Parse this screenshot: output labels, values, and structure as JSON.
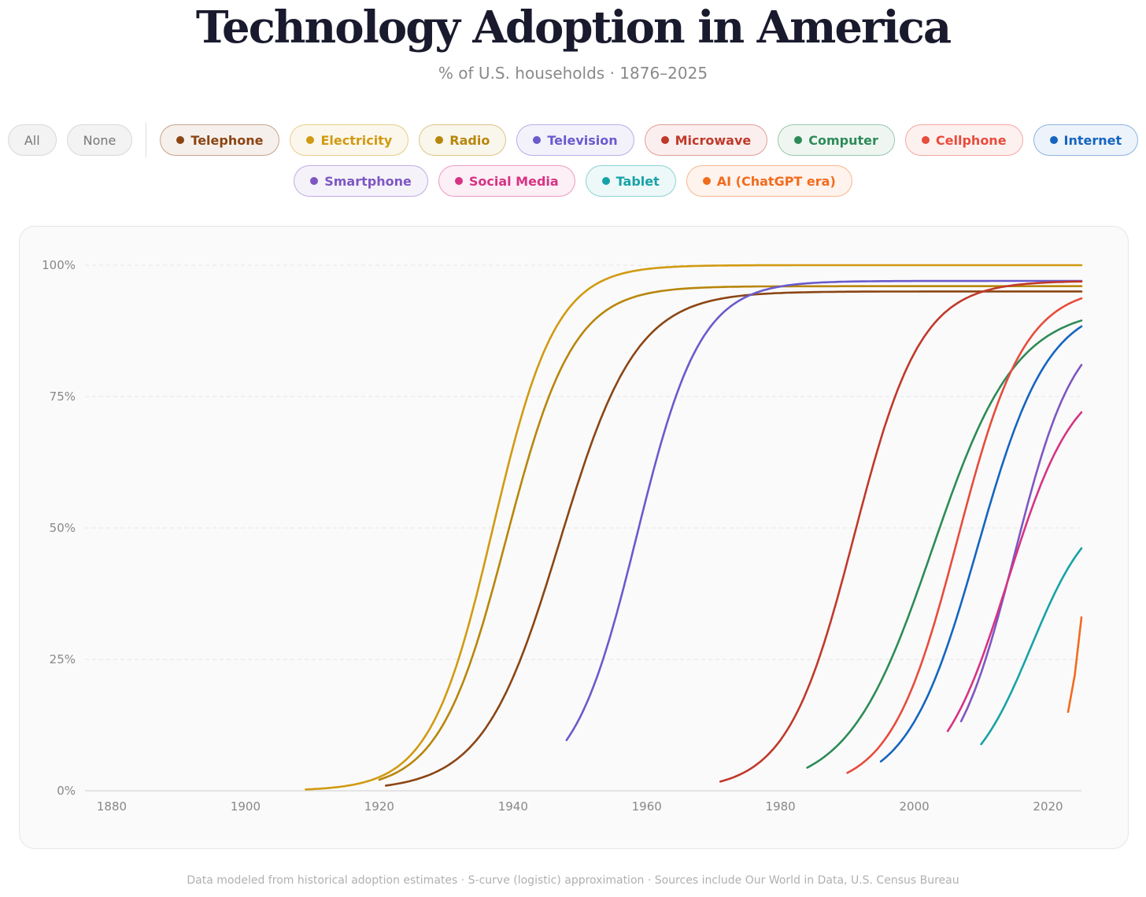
{
  "title": "Technology Adoption in America",
  "subtitle": "% of U.S. households · 1876–2025",
  "controls": {
    "all_label": "All",
    "none_label": "None"
  },
  "footer": "Data modeled from historical adoption estimates · S-curve (logistic) approximation · Sources include Our World in Data, U.S. Census Bureau",
  "chart_data": {
    "type": "line",
    "title": "Technology Adoption in America",
    "xlabel": "",
    "ylabel": "% of U.S. households",
    "xlim": [
      1876,
      2025
    ],
    "ylim": [
      0,
      100
    ],
    "grid": true,
    "x_ticks": [
      "1880",
      "1900",
      "1920",
      "1940",
      "1960",
      "1980",
      "2000",
      "2020"
    ],
    "y_ticks": [
      "0%",
      "25%",
      "50%",
      "75%",
      "100%"
    ],
    "model": "logistic: value = ceiling / (1 + exp(-rate * (year - midpoint)))",
    "series": [
      {
        "name": "Telephone",
        "color": "#8B4513",
        "start": 1921,
        "end": 2025,
        "ceiling": 95,
        "midpoint": 1947,
        "rate": 0.175
      },
      {
        "name": "Electricity",
        "color": "#D19A12",
        "start": 1909,
        "end": 2025,
        "ceiling": 100,
        "midpoint": 1937,
        "rate": 0.213
      },
      {
        "name": "Radio",
        "color": "#B8860B",
        "start": 1920,
        "end": 2025,
        "ceiling": 96,
        "midpoint": 1939,
        "rate": 0.2
      },
      {
        "name": "Television",
        "color": "#6A5ACD",
        "start": 1948,
        "end": 2025,
        "ceiling": 97,
        "midpoint": 1958.5,
        "rate": 0.21
      },
      {
        "name": "Microwave",
        "color": "#C0392B",
        "start": 1971,
        "end": 2025,
        "ceiling": 97,
        "midpoint": 1991,
        "rate": 0.2
      },
      {
        "name": "Computer",
        "color": "#2E8B57",
        "start": 1984,
        "end": 2025,
        "ceiling": 92,
        "midpoint": 2002.7,
        "rate": 0.16
      },
      {
        "name": "Cellphone",
        "color": "#E74C3C",
        "start": 1990,
        "end": 2025,
        "ceiling": 96,
        "midpoint": 2006.5,
        "rate": 0.2
      },
      {
        "name": "Internet",
        "color": "#1565C0",
        "start": 1995,
        "end": 2025,
        "ceiling": 93,
        "midpoint": 2009.5,
        "rate": 0.19
      },
      {
        "name": "Smartphone",
        "color": "#7E57C2",
        "start": 2007,
        "end": 2025,
        "ceiling": 90,
        "midpoint": 2015,
        "rate": 0.22
      },
      {
        "name": "Social Media",
        "color": "#D63384",
        "start": 2005,
        "end": 2025,
        "ceiling": 80,
        "midpoint": 2014,
        "rate": 0.2
      },
      {
        "name": "Tablet",
        "color": "#17A2A8",
        "start": 2010,
        "end": 2025,
        "ceiling": 55,
        "midpoint": 2017.5,
        "rate": 0.22
      },
      {
        "name": "AI (ChatGPT era)",
        "color": "#F26B1D",
        "points": [
          [
            2023,
            15
          ],
          [
            2024,
            22
          ],
          [
            2025,
            33
          ]
        ]
      }
    ]
  }
}
